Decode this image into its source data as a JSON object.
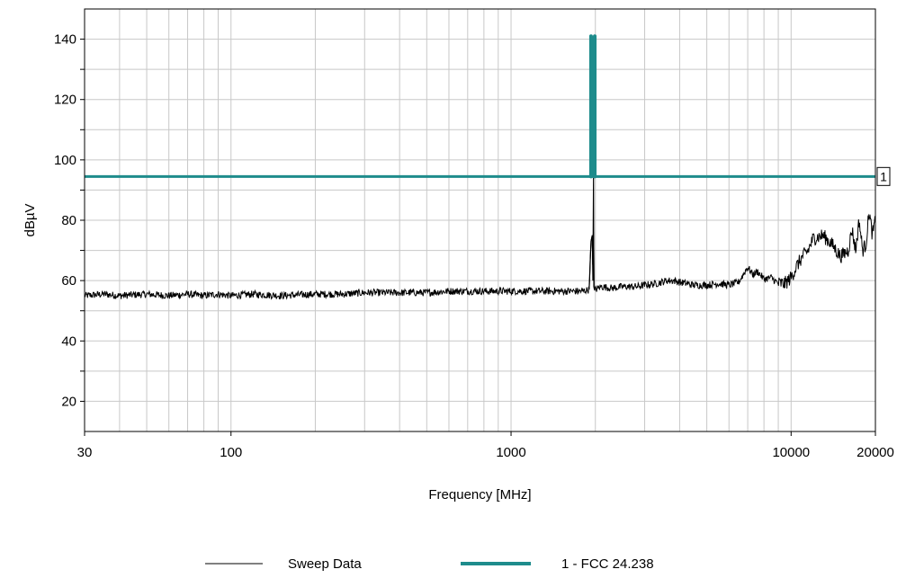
{
  "chart_data": {
    "type": "line",
    "xlabel": "Frequency [MHz]",
    "ylabel": "dBµV",
    "x_scale": "log",
    "xlim": [
      30,
      20000
    ],
    "ylim": [
      10,
      150
    ],
    "x_tick_values": [
      30,
      100,
      1000,
      10000,
      20000
    ],
    "x_tick_labels": [
      "30",
      "100",
      "1000",
      "10000",
      "20000"
    ],
    "y_tick_values": [
      20,
      40,
      60,
      80,
      100,
      120,
      140
    ],
    "y_tick_labels": [
      "20",
      "40",
      "60",
      "80",
      "100",
      "120",
      "140"
    ],
    "grid": true,
    "legend_position": "bottom",
    "series": [
      {
        "name": "Sweep Data",
        "color": "#000000",
        "x": [
          30,
          35,
          40,
          50,
          60,
          70,
          80,
          90,
          100,
          120,
          150,
          200,
          250,
          300,
          400,
          500,
          600,
          700,
          800,
          1000,
          1200,
          1500,
          1800,
          1900,
          1930,
          1950,
          1960,
          1970,
          1975,
          1985,
          2000,
          2100,
          2300,
          2500,
          2800,
          3000,
          3300,
          3600,
          3800,
          4000,
          4500,
          5000,
          5500,
          6000,
          6500,
          7000,
          7300,
          7600,
          8000,
          8500,
          9000,
          9500,
          10000,
          10500,
          11000,
          11500,
          12000,
          13000,
          14000,
          15000,
          16000,
          16500,
          17000,
          17500,
          18000,
          18500,
          19000,
          19500,
          20000
        ],
        "values": [
          55,
          55.5,
          55,
          55.5,
          55,
          55.5,
          55,
          55.5,
          55,
          55.5,
          55,
          55.5,
          55.5,
          56,
          56,
          56,
          56.5,
          56.5,
          56.5,
          56.5,
          56.5,
          56.5,
          56.5,
          57,
          73,
          75,
          60,
          94,
          58,
          57,
          57,
          58,
          57.5,
          58,
          58,
          58.5,
          59,
          60,
          60,
          59.5,
          58.5,
          58.5,
          59,
          58.5,
          59.5,
          64.5,
          62,
          63,
          60.5,
          61,
          59,
          59,
          61,
          65,
          68,
          70,
          74,
          75,
          72,
          68,
          70,
          77,
          70,
          80,
          70,
          72,
          83,
          75,
          80
        ]
      },
      {
        "name": "1 - FCC 24.238",
        "color": "#1e8c8c",
        "segments": [
          {
            "x": [
              30,
              20000
            ],
            "values": [
              94.5,
              94.5
            ]
          },
          {
            "x": [
              1930,
              1930
            ],
            "values": [
              94.5,
              141
            ]
          },
          {
            "x": [
              1990,
              1990
            ],
            "values": [
              94.5,
              141
            ]
          }
        ]
      }
    ],
    "marker_label": "1"
  }
}
